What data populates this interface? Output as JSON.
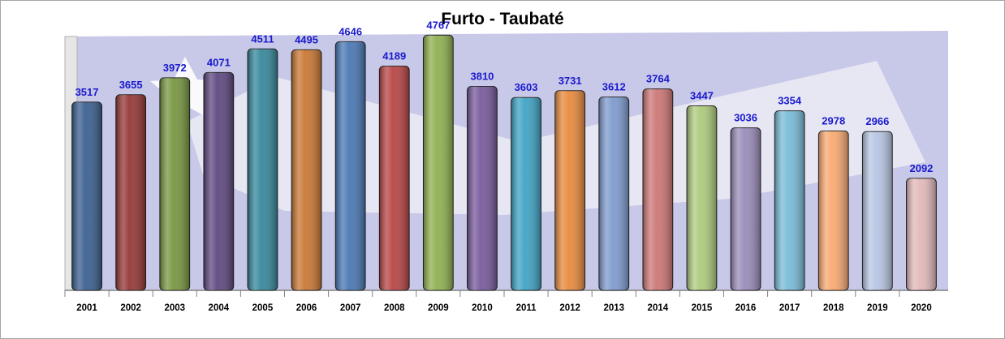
{
  "chart_data": {
    "type": "bar",
    "title": "Furto - Taubaté",
    "xlabel": "",
    "ylabel": "",
    "ylim": [
      0,
      5000
    ],
    "grid": false,
    "legend": "none",
    "categories": [
      "2001",
      "2002",
      "2003",
      "2004",
      "2005",
      "2006",
      "2007",
      "2008",
      "2009",
      "2010",
      "2011",
      "2012",
      "2013",
      "2014",
      "2015",
      "2016",
      "2017",
      "2018",
      "2019",
      "2020"
    ],
    "values": [
      3517,
      3655,
      3972,
      4071,
      4511,
      4495,
      4646,
      4189,
      4767,
      3810,
      3603,
      3731,
      3612,
      3764,
      3447,
      3036,
      3354,
      2978,
      2966,
      2092
    ],
    "colors": [
      "#3a5f8f",
      "#953836",
      "#789641",
      "#5f4880",
      "#36889c",
      "#c97833",
      "#4a78b4",
      "#b84545",
      "#8fb050",
      "#775a9c",
      "#3fa3c4",
      "#e88a3e",
      "#7e9bcd",
      "#cd7777",
      "#aecb7d",
      "#9a8cb8",
      "#79bcd8",
      "#f9a971",
      "#b8c6e3",
      "#e2b9bb"
    ],
    "label_color": "#1a1acd",
    "background_color": "#c8c8e8"
  }
}
